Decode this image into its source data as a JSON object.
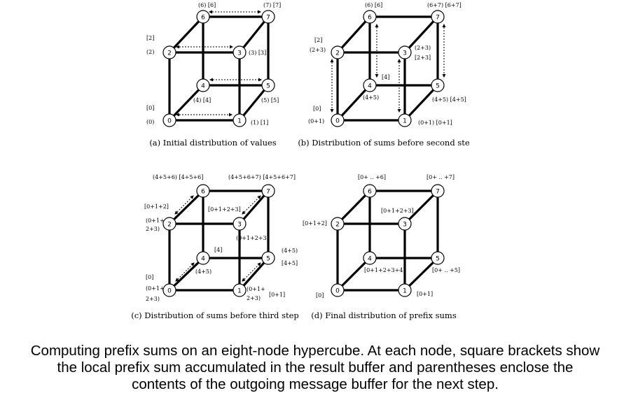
{
  "nodes": [
    "0",
    "1",
    "2",
    "3",
    "4",
    "5",
    "6",
    "7"
  ],
  "panels": [
    {
      "caption": "(a) Initial distribution of values",
      "labels": {
        "n6": [
          "(6)  [6]"
        ],
        "n7": [
          "(7)  [7]"
        ],
        "n2": [
          "[2]",
          "(2)"
        ],
        "n3": [
          "(3)  [3]"
        ],
        "n4": [
          "(4)  [4]"
        ],
        "n5": [
          "(5)  [5]"
        ],
        "n0": [
          "[0]",
          "(0)"
        ],
        "n1": [
          "(1)  [1]"
        ]
      }
    },
    {
      "caption": "(b) Distribution of sums before second ste",
      "labels": {
        "n6": [
          "(6)  [6]"
        ],
        "n7": [
          "(6+7)  [6+7]"
        ],
        "n2": [
          "[2]",
          "(2+3)"
        ],
        "n3": [
          "(2+3)",
          "[2+3]"
        ],
        "n4a": [
          "[4]"
        ],
        "n4b": [
          "(4+5)"
        ],
        "n5": [
          "(4+5)  [4+5]"
        ],
        "n0": [
          "[0]",
          "(0+1)"
        ],
        "n1": [
          "(0+1)  [0+1]"
        ]
      }
    },
    {
      "caption": "(c) Distribution of sums before third step",
      "labels": {
        "n6": [
          "(4+5+6)  [4+5+6]"
        ],
        "n7": [
          "(4+5+6+7)  [4+5+6+7]"
        ],
        "n2a": [
          "[0+1+2]"
        ],
        "n2b": [
          "(0+1+",
          "2+3)"
        ],
        "n3a": [
          "[0+1+2+3]"
        ],
        "n3b": [
          "(0+1+2+3)"
        ],
        "n4a": [
          "[4]"
        ],
        "n4b": [
          "(4+5)"
        ],
        "n5": [
          "(4+5)",
          "[4+5]"
        ],
        "n0": [
          "[0]",
          "(0+1+",
          "2+3)"
        ],
        "n1a": [
          "(0+1+",
          "2+3)"
        ],
        "n1b": [
          "[0+1]"
        ]
      }
    },
    {
      "caption": "(d) Final distribution of prefix sums",
      "labels": {
        "n6": [
          "[0+ .. +6]"
        ],
        "n7": [
          "[0+ .. +7]"
        ],
        "n2": [
          "[0+1+2]"
        ],
        "n3": [
          "[0+1+2+3]"
        ],
        "n4": [
          "[0+1+2+3+4]"
        ],
        "n5": [
          "[0+ .. +5]"
        ],
        "n0": [
          "[0]"
        ],
        "n1": [
          "[0+1]"
        ]
      }
    }
  ],
  "caption": "Computing prefix sums on an eight-node hypercube. At each node, square brackets show the local prefix sum accumulated in the result buffer and parentheses enclose the contents of the outgoing message buffer for the next step."
}
